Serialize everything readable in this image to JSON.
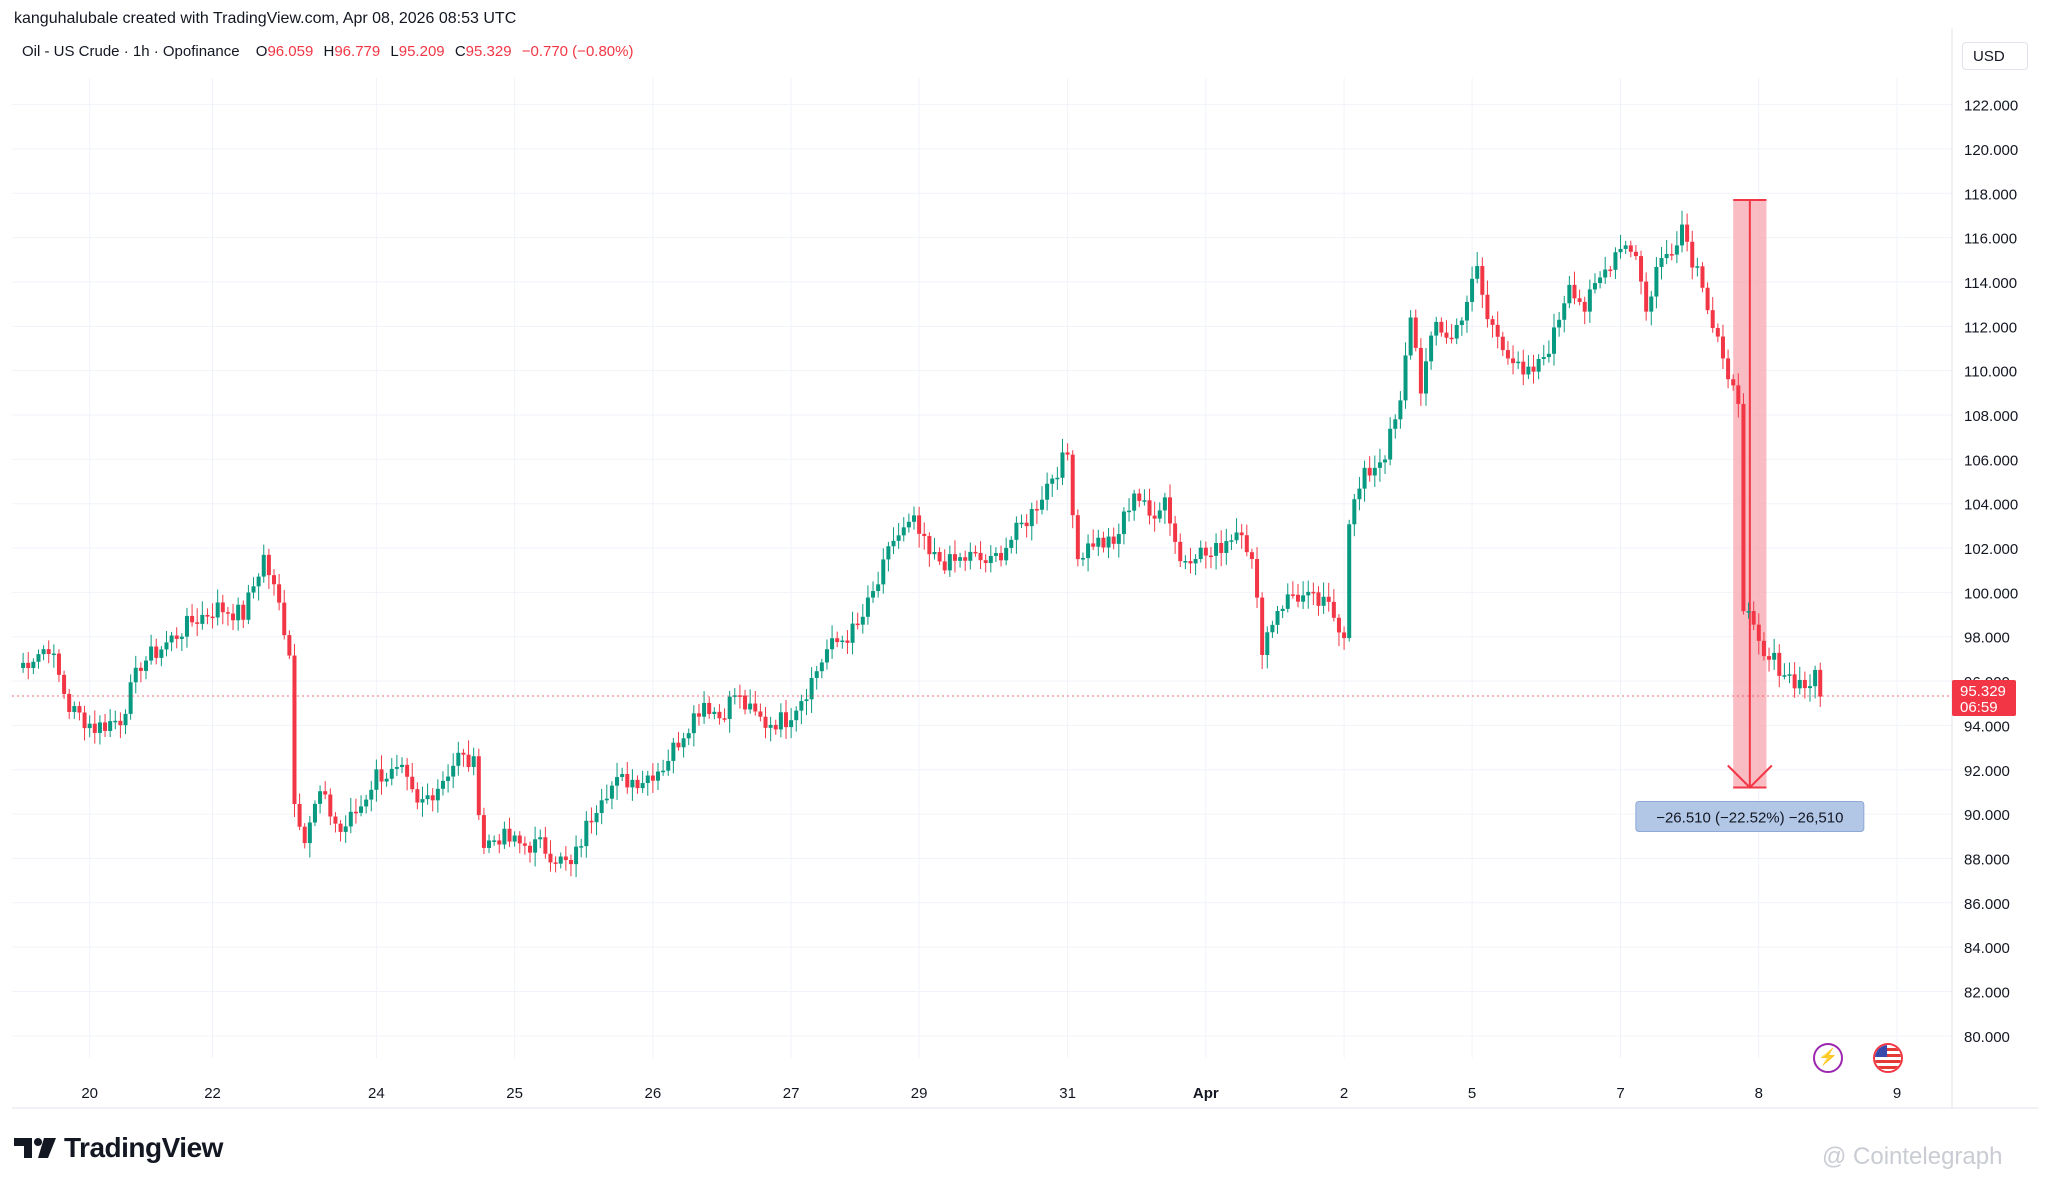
{
  "header": {
    "caption": "kanguhalubale created with TradingView.com, Apr 08, 2026 08:53 UTC"
  },
  "legend": {
    "symbol": "Oil - US Crude · 1h · Opofinance",
    "open_label": "O",
    "open": "96.059",
    "high_label": "H",
    "high": "96.779",
    "low_label": "L",
    "low": "95.209",
    "close_label": "C",
    "close": "95.329",
    "change": "−0.770 (−0.80%)"
  },
  "currency": "USD",
  "colors": {
    "up": "#089981",
    "down": "#f23645",
    "grid": "#f0f3fa",
    "axis_text": "#131722",
    "measure_fill": "#f7a6ad"
  },
  "price_tag": {
    "price": "95.329",
    "countdown": "06:59"
  },
  "measure": {
    "label": "−26.510 (−22.52%) −26,510"
  },
  "branding": {
    "logo": "TradingView",
    "watermark": "@ Cointelegraph"
  },
  "icons": [
    "bolt-icon",
    "us-flag-icon",
    "tradingview-logo-icon"
  ],
  "chart_data": {
    "type": "candlestick",
    "title": "Oil - US Crude · 1h · Opofinance",
    "ylim": [
      79,
      123.2
    ],
    "yticks": [
      "80.000",
      "82.000",
      "84.000",
      "86.000",
      "88.000",
      "90.000",
      "92.000",
      "94.000",
      "96.000",
      "98.000",
      "100.000",
      "102.000",
      "104.000",
      "106.000",
      "108.000",
      "110.000",
      "112.000",
      "114.000",
      "116.000",
      "118.000",
      "120.000",
      "122.000"
    ],
    "xticks": [
      {
        "label": "20",
        "i": 14
      },
      {
        "label": "22",
        "i": 38
      },
      {
        "label": "24",
        "i": 70
      },
      {
        "label": "25",
        "i": 97
      },
      {
        "label": "26",
        "i": 124
      },
      {
        "label": "27",
        "i": 151
      },
      {
        "label": "29",
        "i": 176
      },
      {
        "label": "31",
        "i": 205
      },
      {
        "label": "Apr",
        "i": 232
      },
      {
        "label": "2",
        "i": 259
      },
      {
        "label": "5",
        "i": 284
      },
      {
        "label": "7",
        "i": 313
      },
      {
        "label": "8",
        "i": 340
      },
      {
        "label": "9",
        "i": 367
      }
    ],
    "waypoints": [
      [
        0,
        96.6
      ],
      [
        6,
        97.6
      ],
      [
        10,
        94.8
      ],
      [
        15,
        93.9
      ],
      [
        20,
        94.3
      ],
      [
        24,
        96.8
      ],
      [
        28,
        97.5
      ],
      [
        34,
        98.7
      ],
      [
        39,
        99.3
      ],
      [
        44,
        99.0
      ],
      [
        48,
        101.6
      ],
      [
        51,
        99.4
      ],
      [
        53,
        97.4
      ],
      [
        54,
        90.5
      ],
      [
        56,
        89.1
      ],
      [
        59,
        90.9
      ],
      [
        63,
        89.2
      ],
      [
        67,
        90.4
      ],
      [
        70,
        91.8
      ],
      [
        75,
        91.8
      ],
      [
        78,
        90.3
      ],
      [
        82,
        91.3
      ],
      [
        86,
        92.6
      ],
      [
        89,
        92.2
      ],
      [
        91,
        88.6
      ],
      [
        94,
        89.0
      ],
      [
        98,
        88.6
      ],
      [
        102,
        88.6
      ],
      [
        106,
        87.9
      ],
      [
        108,
        87.6
      ],
      [
        111,
        89.4
      ],
      [
        114,
        91.0
      ],
      [
        118,
        91.5
      ],
      [
        122,
        91.6
      ],
      [
        126,
        92.2
      ],
      [
        131,
        94.1
      ],
      [
        134,
        95.1
      ],
      [
        137,
        94.4
      ],
      [
        140,
        95.4
      ],
      [
        143,
        94.6
      ],
      [
        146,
        94.1
      ],
      [
        150,
        94.3
      ],
      [
        154,
        95.6
      ],
      [
        158,
        97.4
      ],
      [
        164,
        98.4
      ],
      [
        168,
        100.4
      ],
      [
        171,
        102.4
      ],
      [
        175,
        103.1
      ],
      [
        178,
        101.6
      ],
      [
        182,
        101.3
      ],
      [
        186,
        101.6
      ],
      [
        190,
        101.3
      ],
      [
        194,
        102.4
      ],
      [
        198,
        103.6
      ],
      [
        202,
        105.3
      ],
      [
        205,
        106.2
      ],
      [
        207,
        101.6
      ],
      [
        210,
        102.3
      ],
      [
        214,
        102.1
      ],
      [
        218,
        104.6
      ],
      [
        221,
        103.4
      ],
      [
        224,
        104.3
      ],
      [
        227,
        101.4
      ],
      [
        230,
        101.9
      ],
      [
        233,
        101.6
      ],
      [
        236,
        102.4
      ],
      [
        239,
        103.0
      ],
      [
        241,
        101.3
      ],
      [
        243,
        97.6
      ],
      [
        246,
        99.3
      ],
      [
        249,
        99.9
      ],
      [
        253,
        99.6
      ],
      [
        256,
        99.3
      ],
      [
        259,
        98.2
      ],
      [
        260,
        103.4
      ],
      [
        263,
        105.2
      ],
      [
        267,
        106.3
      ],
      [
        270,
        108.4
      ],
      [
        272,
        112.6
      ],
      [
        274,
        109.3
      ],
      [
        277,
        112.1
      ],
      [
        280,
        111.4
      ],
      [
        283,
        113.2
      ],
      [
        285,
        114.5
      ],
      [
        287,
        112.3
      ],
      [
        290,
        111.3
      ],
      [
        294,
        109.6
      ],
      [
        297,
        110.2
      ],
      [
        300,
        111.6
      ],
      [
        303,
        114.1
      ],
      [
        306,
        112.8
      ],
      [
        309,
        114.1
      ],
      [
        313,
        115.8
      ],
      [
        316,
        115.4
      ],
      [
        318,
        112.6
      ],
      [
        320,
        114.6
      ],
      [
        323,
        115.6
      ],
      [
        325,
        116.6
      ],
      [
        327,
        115.1
      ],
      [
        329,
        114.1
      ],
      [
        331,
        112.1
      ],
      [
        332,
        111.6
      ],
      [
        334,
        109.2
      ],
      [
        336,
        108.8
      ],
      [
        337,
        99.6
      ],
      [
        339,
        98.1
      ],
      [
        341,
        96.9
      ],
      [
        343,
        96.9
      ],
      [
        346,
        96.2
      ],
      [
        349,
        95.8
      ],
      [
        351,
        96.1
      ],
      [
        352,
        95.3
      ]
    ],
    "annotation": {
      "kind": "price-range",
      "from": 117.7,
      "to": 91.2,
      "label": "−26.510 (−22.52%) −26,510"
    }
  }
}
